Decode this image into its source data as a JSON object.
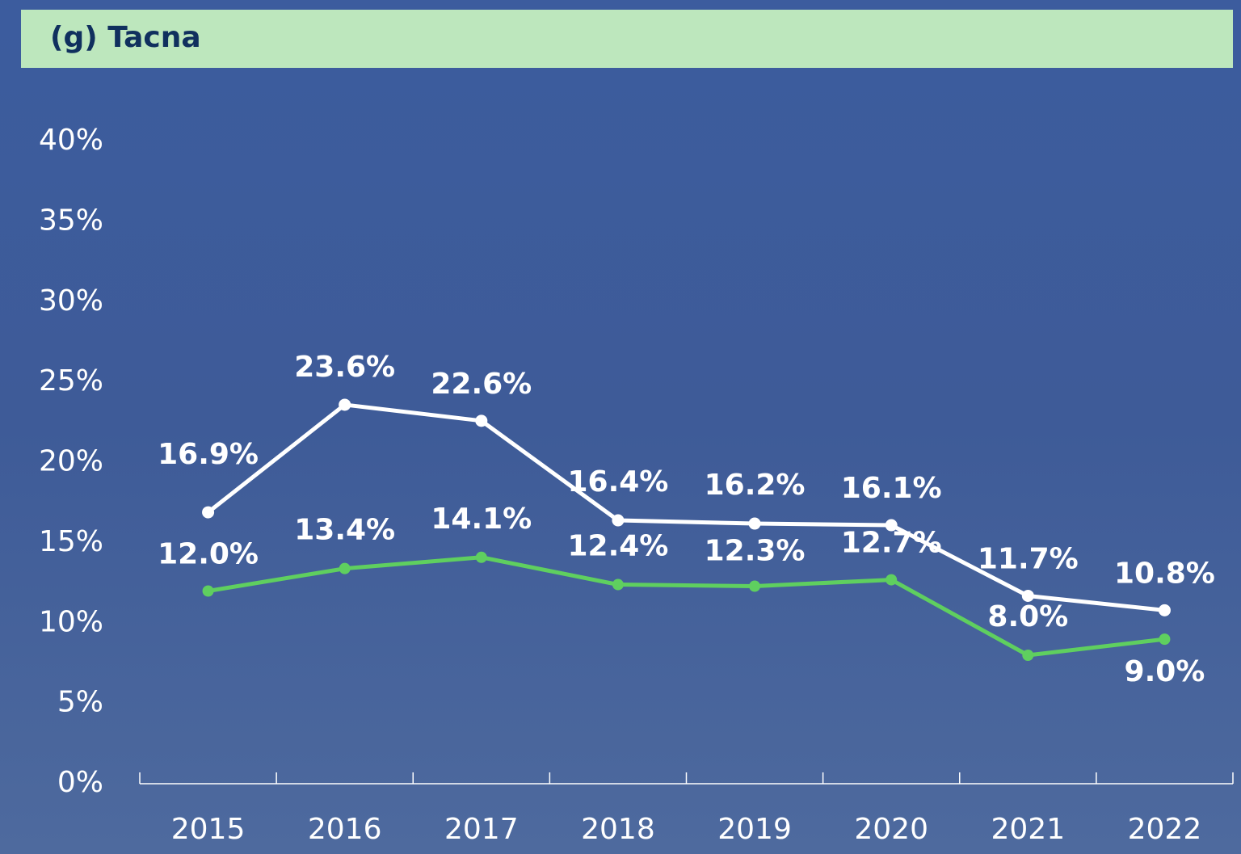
{
  "chart_data": {
    "type": "line",
    "title": "(g) Tacna",
    "categories": [
      "2015",
      "2016",
      "2017",
      "2018",
      "2019",
      "2020",
      "2021",
      "2022"
    ],
    "series": [
      {
        "color": "#ffffff",
        "values": [
          16.9,
          23.6,
          22.6,
          16.4,
          16.2,
          16.1,
          11.7,
          10.8
        ],
        "value_labels": [
          "16.9%",
          "23.6%",
          "22.6%",
          "16.4%",
          "16.2%",
          "16.1%",
          "11.7%",
          "10.8%"
        ]
      },
      {
        "color": "#5fcf5f",
        "values": [
          12.0,
          13.4,
          14.1,
          12.4,
          12.3,
          12.7,
          8.0,
          9.0
        ],
        "value_labels": [
          "12.0%",
          "13.4%",
          "14.1%",
          "12.4%",
          "12.3%",
          "12.7%",
          "8.0%",
          "9.0%"
        ]
      }
    ],
    "ylim": [
      0,
      40
    ],
    "yticks": [
      {
        "value": 0,
        "label": "0%"
      },
      {
        "value": 5,
        "label": "5%"
      },
      {
        "value": 10,
        "label": "10%"
      },
      {
        "value": 15,
        "label": "15%"
      },
      {
        "value": 20,
        "label": "20%"
      },
      {
        "value": 25,
        "label": "25%"
      },
      {
        "value": 30,
        "label": "30%"
      },
      {
        "value": 35,
        "label": "35%"
      },
      {
        "value": 40,
        "label": "40%"
      }
    ],
    "grid": false
  }
}
